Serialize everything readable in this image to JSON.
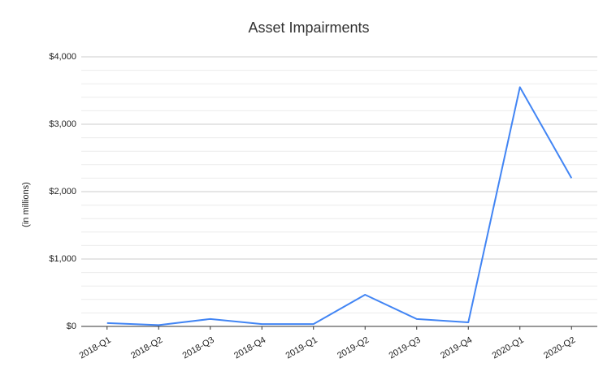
{
  "chart_data": {
    "type": "line",
    "title": "Asset Impairments",
    "y_label": "(in millions)",
    "categories": [
      "2018-Q1",
      "2018-Q2",
      "2018-Q3",
      "2018-Q4",
      "2019-Q1",
      "2019-Q2",
      "2019-Q3",
      "2019-Q4",
      "2020-Q1",
      "2020-Q2"
    ],
    "series": [
      {
        "color": "#4285f4",
        "values": [
          50,
          20,
          110,
          35,
          35,
          470,
          110,
          60,
          3550,
          2200
        ]
      }
    ],
    "ylim": [
      0,
      4000
    ],
    "yticks": [
      {
        "value": 0,
        "label": "$0"
      },
      {
        "value": 1000,
        "label": "$1,000"
      },
      {
        "value": 2000,
        "label": "$2,000"
      },
      {
        "value": 3000,
        "label": "$3,000"
      },
      {
        "value": 4000,
        "label": "$4,000"
      }
    ],
    "minor_yticks": [
      200,
      400,
      600,
      800,
      1200,
      1400,
      1600,
      1800,
      2200,
      2400,
      2600,
      2800,
      3200,
      3400,
      3600,
      3800
    ],
    "grid": true
  }
}
